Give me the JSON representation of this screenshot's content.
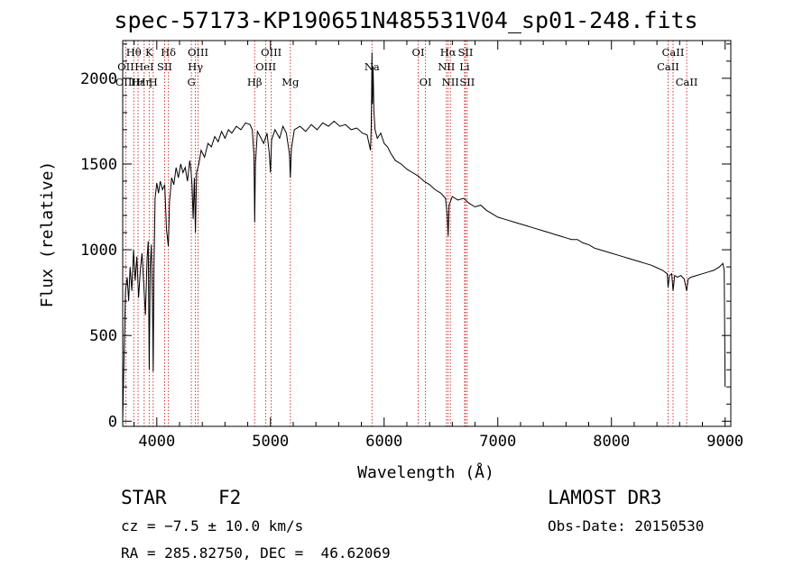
{
  "chart_data": {
    "type": "line",
    "title": "spec-57173-KP190651N485531V04_sp01-248.fits",
    "xlabel": "Wavelength (Å)",
    "ylabel": "Flux (relative)",
    "xlim": [
      3700,
      9050
    ],
    "ylim": [
      -30,
      2220
    ],
    "x_ticks": [
      4000,
      5000,
      6000,
      7000,
      8000,
      9000
    ],
    "x_tick_labels": [
      "4000",
      "5000",
      "6000",
      "7000",
      "8000",
      "9000"
    ],
    "y_ticks": [
      0,
      500,
      1000,
      1500,
      2000
    ],
    "y_tick_labels": [
      "0",
      "500",
      "1000",
      "1500",
      "2000"
    ],
    "series": [
      {
        "name": "flux",
        "color": "#000000",
        "points": [
          [
            3700,
            0
          ],
          [
            3712,
            380
          ],
          [
            3725,
            760
          ],
          [
            3740,
            840
          ],
          [
            3752,
            700
          ],
          [
            3765,
            900
          ],
          [
            3780,
            760
          ],
          [
            3795,
            1000
          ],
          [
            3810,
            820
          ],
          [
            3825,
            960
          ],
          [
            3840,
            720
          ],
          [
            3855,
            880
          ],
          [
            3870,
            980
          ],
          [
            3885,
            800
          ],
          [
            3900,
            620
          ],
          [
            3915,
            960
          ],
          [
            3925,
            1050
          ],
          [
            3933,
            300
          ],
          [
            3942,
            900
          ],
          [
            3952,
            1030
          ],
          [
            3962,
            700
          ],
          [
            3968,
            290
          ],
          [
            3975,
            860
          ],
          [
            3985,
            1300
          ],
          [
            4000,
            1390
          ],
          [
            4015,
            1330
          ],
          [
            4030,
            1400
          ],
          [
            4050,
            1350
          ],
          [
            4070,
            1380
          ],
          [
            4085,
            1120
          ],
          [
            4102,
            1020
          ],
          [
            4112,
            1280
          ],
          [
            4130,
            1420
          ],
          [
            4150,
            1380
          ],
          [
            4170,
            1480
          ],
          [
            4190,
            1420
          ],
          [
            4210,
            1500
          ],
          [
            4230,
            1450
          ],
          [
            4250,
            1480
          ],
          [
            4270,
            1400
          ],
          [
            4290,
            1520
          ],
          [
            4300,
            1470
          ],
          [
            4310,
            1380
          ],
          [
            4320,
            1180
          ],
          [
            4330,
            1420
          ],
          [
            4340,
            1100
          ],
          [
            4350,
            1450
          ],
          [
            4370,
            1500
          ],
          [
            4390,
            1580
          ],
          [
            4420,
            1540
          ],
          [
            4450,
            1620
          ],
          [
            4480,
            1600
          ],
          [
            4510,
            1660
          ],
          [
            4540,
            1630
          ],
          [
            4570,
            1690
          ],
          [
            4600,
            1650
          ],
          [
            4630,
            1700
          ],
          [
            4660,
            1680
          ],
          [
            4700,
            1720
          ],
          [
            4740,
            1700
          ],
          [
            4780,
            1740
          ],
          [
            4820,
            1730
          ],
          [
            4840,
            1700
          ],
          [
            4855,
            1550
          ],
          [
            4861,
            1160
          ],
          [
            4868,
            1500
          ],
          [
            4885,
            1690
          ],
          [
            4910,
            1660
          ],
          [
            4940,
            1620
          ],
          [
            4970,
            1680
          ],
          [
            4990,
            1560
          ],
          [
            5000,
            1450
          ],
          [
            5010,
            1640
          ],
          [
            5040,
            1700
          ],
          [
            5080,
            1650
          ],
          [
            5110,
            1720
          ],
          [
            5140,
            1680
          ],
          [
            5167,
            1560
          ],
          [
            5175,
            1420
          ],
          [
            5184,
            1590
          ],
          [
            5210,
            1700
          ],
          [
            5260,
            1720
          ],
          [
            5310,
            1690
          ],
          [
            5360,
            1730
          ],
          [
            5410,
            1700
          ],
          [
            5460,
            1740
          ],
          [
            5510,
            1720
          ],
          [
            5560,
            1750
          ],
          [
            5610,
            1720
          ],
          [
            5660,
            1730
          ],
          [
            5710,
            1700
          ],
          [
            5760,
            1710
          ],
          [
            5810,
            1680
          ],
          [
            5850,
            1670
          ],
          [
            5880,
            1580
          ],
          [
            5886,
            1700
          ],
          [
            5890,
            1900
          ],
          [
            5893,
            2150
          ],
          [
            5897,
            1850
          ],
          [
            5903,
            2070
          ],
          [
            5910,
            1810
          ],
          [
            5920,
            1700
          ],
          [
            5940,
            1650
          ],
          [
            5970,
            1680
          ],
          [
            6000,
            1620
          ],
          [
            6030,
            1600
          ],
          [
            6060,
            1560
          ],
          [
            6100,
            1520
          ],
          [
            6150,
            1500
          ],
          [
            6200,
            1470
          ],
          [
            6250,
            1450
          ],
          [
            6300,
            1430
          ],
          [
            6350,
            1400
          ],
          [
            6400,
            1380
          ],
          [
            6450,
            1350
          ],
          [
            6500,
            1330
          ],
          [
            6540,
            1300
          ],
          [
            6555,
            1200
          ],
          [
            6563,
            1080
          ],
          [
            6572,
            1260
          ],
          [
            6600,
            1310
          ],
          [
            6650,
            1290
          ],
          [
            6700,
            1300
          ],
          [
            6750,
            1270
          ],
          [
            6800,
            1250
          ],
          [
            6850,
            1260
          ],
          [
            6900,
            1230
          ],
          [
            6950,
            1210
          ],
          [
            7000,
            1190
          ],
          [
            7050,
            1180
          ],
          [
            7100,
            1170
          ],
          [
            7150,
            1160
          ],
          [
            7200,
            1150
          ],
          [
            7250,
            1140
          ],
          [
            7300,
            1130
          ],
          [
            7350,
            1120
          ],
          [
            7400,
            1110
          ],
          [
            7450,
            1100
          ],
          [
            7500,
            1090
          ],
          [
            7550,
            1080
          ],
          [
            7600,
            1070
          ],
          [
            7650,
            1060
          ],
          [
            7700,
            1060
          ],
          [
            7750,
            1040
          ],
          [
            7800,
            1030
          ],
          [
            7850,
            1010
          ],
          [
            7900,
            1000
          ],
          [
            7950,
            990
          ],
          [
            8000,
            980
          ],
          [
            8050,
            970
          ],
          [
            8100,
            960
          ],
          [
            8150,
            950
          ],
          [
            8200,
            940
          ],
          [
            8250,
            930
          ],
          [
            8300,
            920
          ],
          [
            8350,
            910
          ],
          [
            8400,
            895
          ],
          [
            8450,
            880
          ],
          [
            8490,
            860
          ],
          [
            8498,
            780
          ],
          [
            8510,
            850
          ],
          [
            8530,
            860
          ],
          [
            8542,
            760
          ],
          [
            8556,
            850
          ],
          [
            8580,
            840
          ],
          [
            8610,
            850
          ],
          [
            8640,
            830
          ],
          [
            8662,
            760
          ],
          [
            8675,
            830
          ],
          [
            8700,
            840
          ],
          [
            8750,
            850
          ],
          [
            8800,
            860
          ],
          [
            8850,
            870
          ],
          [
            8900,
            880
          ],
          [
            8950,
            900
          ],
          [
            8980,
            920
          ],
          [
            8992,
            880
          ],
          [
            9000,
            200
          ]
        ]
      }
    ],
    "line_markers": [
      {
        "label": "Hθ",
        "wavelength": 3797,
        "row": 1
      },
      {
        "label": "OII",
        "wavelength": 3727,
        "row": 2
      },
      {
        "label": "OIII",
        "wavelength": 3727,
        "row": 3
      },
      {
        "label": "Hε",
        "wavelength": 3835,
        "row": 3
      },
      {
        "label": "K",
        "wavelength": 3933,
        "row": 1
      },
      {
        "label": "HeI",
        "wavelength": 3889,
        "row": 2
      },
      {
        "label": "Hη",
        "wavelength": 3889,
        "row": 3
      },
      {
        "label": "Hδ",
        "wavelength": 4102,
        "row": 1
      },
      {
        "label": "SII",
        "wavelength": 4069,
        "row": 2
      },
      {
        "label": "H",
        "wavelength": 3968,
        "row": 3
      },
      {
        "label": "OIII",
        "wavelength": 4363,
        "row": 1
      },
      {
        "label": "Hγ",
        "wavelength": 4340,
        "row": 2
      },
      {
        "label": "G",
        "wavelength": 4304,
        "row": 3
      },
      {
        "label": "OIII",
        "wavelength": 5007,
        "row": 1
      },
      {
        "label": "OIII",
        "wavelength": 4959,
        "row": 2
      },
      {
        "label": "Hβ",
        "wavelength": 4861,
        "row": 3
      },
      {
        "label": "Mg",
        "wavelength": 5175,
        "row": 3
      },
      {
        "label": "Na",
        "wavelength": 5893,
        "row": 2
      },
      {
        "label": "OI",
        "wavelength": 6300,
        "row": 1
      },
      {
        "label": "OI",
        "wavelength": 6364,
        "row": 3
      },
      {
        "label": "Hα",
        "wavelength": 6563,
        "row": 1
      },
      {
        "label": "NII",
        "wavelength": 6548,
        "row": 2
      },
      {
        "label": "NII",
        "wavelength": 6583,
        "row": 3
      },
      {
        "label": "SII",
        "wavelength": 6716,
        "row": 1
      },
      {
        "label": "Li",
        "wavelength": 6708,
        "row": 2
      },
      {
        "label": "SII",
        "wavelength": 6731,
        "row": 3
      },
      {
        "label": "CaII",
        "wavelength": 8542,
        "row": 1
      },
      {
        "label": "CaII",
        "wavelength": 8498,
        "row": 2
      },
      {
        "label": "CaII",
        "wavelength": 8662,
        "row": 3
      }
    ]
  },
  "info": {
    "class": "STAR",
    "subclass": "F2",
    "survey": "LAMOST DR3",
    "cz": "cz = −7.5 ± 10.0 km/s",
    "obs_date": "Obs-Date: 20150530",
    "coords": "RA = 285.82750, DEC =  46.62069"
  }
}
